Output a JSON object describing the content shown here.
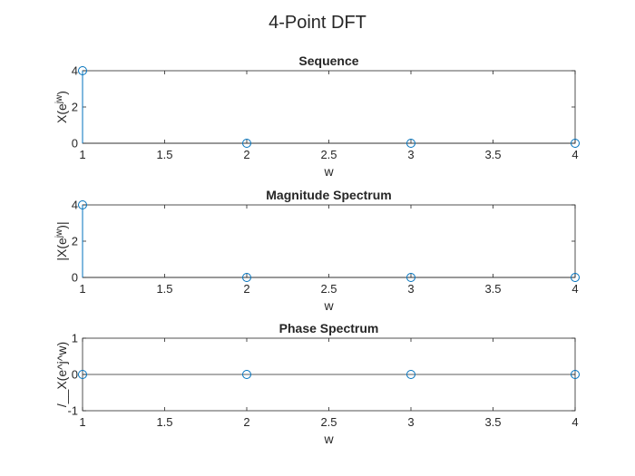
{
  "figure": {
    "title": "4-Point DFT"
  },
  "chart_data": [
    {
      "type": "stem",
      "title": "Sequence",
      "xlabel": "w",
      "ylabel_main": "X(e",
      "ylabel_sup": "jw",
      "ylabel_tail": ")",
      "xlim": [
        1,
        4
      ],
      "ylim": [
        0,
        4
      ],
      "xticks": [
        1,
        1.5,
        2,
        2.5,
        3,
        3.5,
        4
      ],
      "xtick_labels": [
        "1",
        "1.5",
        "2",
        "2.5",
        "3",
        "3.5",
        "4"
      ],
      "yticks": [
        0,
        2,
        4
      ],
      "ytick_labels": [
        "0",
        "2",
        "4"
      ],
      "x": [
        1,
        2,
        3,
        4
      ],
      "y": [
        4,
        0,
        0,
        0
      ],
      "color": "#0072BD",
      "grid": false
    },
    {
      "type": "stem",
      "title": "Magnitude Spectrum",
      "xlabel": "w",
      "ylabel_main": "|X(e",
      "ylabel_sup": "jw",
      "ylabel_tail": ")|",
      "xlim": [
        1,
        4
      ],
      "ylim": [
        0,
        4
      ],
      "xticks": [
        1,
        1.5,
        2,
        2.5,
        3,
        3.5,
        4
      ],
      "xtick_labels": [
        "1",
        "1.5",
        "2",
        "2.5",
        "3",
        "3.5",
        "4"
      ],
      "yticks": [
        0,
        2,
        4
      ],
      "ytick_labels": [
        "0",
        "2",
        "4"
      ],
      "x": [
        1,
        2,
        3,
        4
      ],
      "y": [
        4,
        0,
        0,
        0
      ],
      "color": "#0072BD",
      "grid": false
    },
    {
      "type": "stem",
      "title": "Phase Spectrum",
      "xlabel": "w",
      "ylabel_main": "/__X(e^j^w)",
      "ylabel_sup": "",
      "ylabel_tail": "",
      "xlim": [
        1,
        4
      ],
      "ylim": [
        -1,
        1
      ],
      "xticks": [
        1,
        1.5,
        2,
        2.5,
        3,
        3.5,
        4
      ],
      "xtick_labels": [
        "1",
        "1.5",
        "2",
        "2.5",
        "3",
        "3.5",
        "4"
      ],
      "yticks": [
        -1,
        0,
        1
      ],
      "ytick_labels": [
        "-1",
        "0",
        "1"
      ],
      "x": [
        1,
        2,
        3,
        4
      ],
      "y": [
        0,
        0,
        0,
        0
      ],
      "color": "#0072BD",
      "grid": false
    }
  ]
}
